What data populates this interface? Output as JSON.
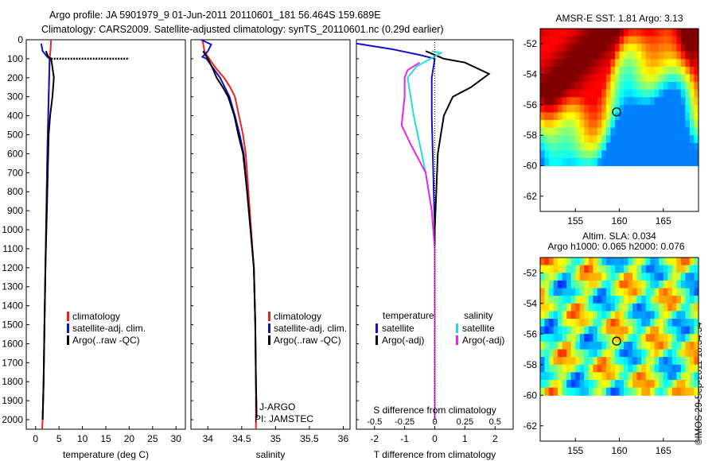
{
  "header": {
    "line1": "Argo profile: JA 5901979_9 01-Jun-2011 20110601_181 56.464S 159.689E",
    "line2": "Climatology: CARS2009. Satellite-adjusted climatology: synTS_20110601.nc (0.29d earlier)"
  },
  "stamp": "©IMOS 29-Sep-2011 18:34:34",
  "colors": {
    "climatology": "#ee2222",
    "satellite": "#1111cc",
    "argo": "#000000",
    "sat_salinity": "#22dddd",
    "argo_salinity": "#ee22ee"
  },
  "chart_data": [
    {
      "type": "line",
      "id": "temperature",
      "xlabel": "temperature (deg C)",
      "ylabel": "",
      "xlim": [
        -2,
        32
      ],
      "ylim": [
        2050,
        0
      ],
      "xticks": [
        0,
        5,
        10,
        15,
        20,
        25,
        30
      ],
      "yticks": [
        0,
        100,
        200,
        300,
        400,
        500,
        600,
        700,
        800,
        900,
        1000,
        1100,
        1200,
        1300,
        1400,
        1500,
        1600,
        1700,
        1800,
        1900,
        2000
      ],
      "legend": [
        "climatology",
        "satellite-adj. clim.",
        "Argo(..raw -QC)"
      ],
      "series": [
        {
          "name": "climatology",
          "color": "#ee2222",
          "points": [
            [
              3.3,
              0
            ],
            [
              3.2,
              50
            ],
            [
              3.0,
              100
            ],
            [
              2.9,
              200
            ],
            [
              2.7,
              400
            ],
            [
              2.5,
              600
            ],
            [
              2.3,
              900
            ],
            [
              2.1,
              1200
            ],
            [
              1.9,
              1500
            ],
            [
              1.7,
              1800
            ],
            [
              1.5,
              2000
            ],
            [
              1.4,
              2050
            ]
          ]
        },
        {
          "name": "satellite-adj. clim.",
          "color": "#1111cc",
          "points": [
            [
              1.2,
              20
            ],
            [
              1.5,
              60
            ],
            [
              2.5,
              90
            ],
            [
              3.0,
              100
            ],
            [
              2.9,
              200
            ],
            [
              2.7,
              400
            ],
            [
              2.5,
              600
            ],
            [
              2.3,
              900
            ],
            [
              2.1,
              1200
            ],
            [
              1.9,
              1500
            ],
            [
              1.7,
              1800
            ],
            [
              1.5,
              2000
            ]
          ]
        },
        {
          "name": "Argo(..raw -QC)",
          "color": "#000000",
          "points": [
            [
              2.2,
              60
            ],
            [
              2.7,
              90
            ],
            [
              3.3,
              100
            ],
            [
              3.5,
              130
            ],
            [
              3.9,
              200
            ],
            [
              3.6,
              300
            ],
            [
              3.1,
              400
            ],
            [
              2.8,
              500
            ],
            [
              2.7,
              600
            ],
            [
              2.5,
              800
            ],
            [
              2.3,
              1000
            ],
            [
              2.1,
              1200
            ],
            [
              1.9,
              1500
            ],
            [
              1.7,
              1800
            ],
            [
              1.5,
              2000
            ]
          ]
        },
        {
          "name": "Argo(..raw -QC)",
          "color": "#000000",
          "dashed": true,
          "points": [
            [
              3.3,
              100
            ],
            [
              20,
              100
            ]
          ]
        }
      ]
    },
    {
      "type": "line",
      "id": "salinity",
      "xlabel": "salinity",
      "ylabel": "",
      "xlim": [
        33.75,
        36.1
      ],
      "ylim": [
        2050,
        0
      ],
      "xticks": [
        34,
        34.5,
        35,
        35.5,
        36
      ],
      "legend": [
        "climatology",
        "satellite-adj. clim.",
        "Argo(..raw -QC)"
      ],
      "annotations": [
        "J-ARGO",
        "PI: JAMSTEC"
      ],
      "series": [
        {
          "name": "climatology",
          "color": "#ee2222",
          "points": [
            [
              33.92,
              0
            ],
            [
              33.95,
              60
            ],
            [
              34.02,
              100
            ],
            [
              34.12,
              150
            ],
            [
              34.24,
              200
            ],
            [
              34.33,
              250
            ],
            [
              34.4,
              300
            ],
            [
              34.46,
              400
            ],
            [
              34.52,
              500
            ],
            [
              34.56,
              600
            ],
            [
              34.6,
              800
            ],
            [
              34.64,
              1000
            ],
            [
              34.68,
              1200
            ],
            [
              34.7,
              1500
            ],
            [
              34.71,
              1800
            ],
            [
              34.71,
              2000
            ],
            [
              34.71,
              2050
            ]
          ]
        },
        {
          "name": "satellite-adj. clim.",
          "color": "#1111cc",
          "points": [
            [
              33.9,
              0
            ],
            [
              34.05,
              25
            ],
            [
              34.0,
              60
            ],
            [
              33.92,
              90
            ],
            [
              33.98,
              100
            ],
            [
              34.08,
              150
            ],
            [
              34.18,
              200
            ],
            [
              34.25,
              250
            ],
            [
              34.32,
              300
            ],
            [
              34.4,
              400
            ],
            [
              34.47,
              500
            ],
            [
              34.53,
              600
            ],
            [
              34.58,
              800
            ],
            [
              34.63,
              1000
            ],
            [
              34.68,
              1200
            ],
            [
              34.7,
              1500
            ],
            [
              34.71,
              1800
            ],
            [
              34.72,
              1990
            ]
          ]
        },
        {
          "name": "Argo(..raw -QC)",
          "color": "#000000",
          "points": [
            [
              33.93,
              60
            ],
            [
              34.0,
              100
            ],
            [
              34.07,
              150
            ],
            [
              34.13,
              200
            ],
            [
              34.22,
              250
            ],
            [
              34.3,
              300
            ],
            [
              34.39,
              400
            ],
            [
              34.45,
              500
            ],
            [
              34.52,
              600
            ],
            [
              34.58,
              800
            ],
            [
              34.63,
              1000
            ],
            [
              34.68,
              1200
            ],
            [
              34.7,
              1500
            ],
            [
              34.71,
              1800
            ],
            [
              34.72,
              1990
            ]
          ]
        }
      ]
    },
    {
      "type": "line",
      "id": "difference",
      "xlabel": "T difference from climatology",
      "xlabel_top": "S difference from climatology",
      "xlim": [
        -2.6,
        2.6
      ],
      "ylim": [
        2050,
        0
      ],
      "xticks": [
        -2,
        -1,
        0,
        1,
        2
      ],
      "xticks_s": [
        "-0.5",
        "-0.25",
        "0",
        "0.25",
        "0.5"
      ],
      "legend": {
        "temperature_title": "temperature",
        "salinity_title": "salinity",
        "temperature": [
          "satellite",
          "Argo(-adj)"
        ],
        "salinity": [
          "satellite",
          "Argo(-adj)"
        ]
      },
      "series": [
        {
          "name": "temperature satellite",
          "color": "#1111cc",
          "points": [
            [
              -2.6,
              20
            ],
            [
              -1.4,
              50
            ],
            [
              -0.5,
              80
            ],
            [
              0,
              100
            ],
            [
              -0.1,
              200
            ],
            [
              -0.1,
              400
            ],
            [
              -0.05,
              700
            ],
            [
              0,
              1000
            ],
            [
              0,
              2000
            ]
          ]
        },
        {
          "name": "temperature Argo(-adj)",
          "color": "#000000",
          "points": [
            [
              -0.3,
              60
            ],
            [
              0.3,
              100
            ],
            [
              1.0,
              120
            ],
            [
              1.8,
              180
            ],
            [
              1.2,
              250
            ],
            [
              0.6,
              300
            ],
            [
              0.3,
              400
            ],
            [
              0.2,
              500
            ],
            [
              0.1,
              600
            ],
            [
              0.05,
              800
            ],
            [
              0,
              1000
            ],
            [
              0,
              2000
            ]
          ]
        },
        {
          "name": "salinity satellite",
          "color": "#22dddd",
          "points": [
            [
              -0.1,
              60
            ],
            [
              0.2,
              70
            ],
            [
              -0.6,
              140
            ],
            [
              -0.9,
              200
            ],
            [
              -0.8,
              300
            ],
            [
              -0.7,
              400
            ],
            [
              -0.5,
              550
            ],
            [
              -0.3,
              700
            ],
            [
              -0.1,
              900
            ],
            [
              0,
              1100
            ],
            [
              0,
              2000
            ]
          ]
        },
        {
          "name": "salinity Argo(-adj)",
          "color": "#ee22ee",
          "points": [
            [
              -0.5,
              120
            ],
            [
              -0.9,
              160
            ],
            [
              -1.0,
              200
            ],
            [
              -1.0,
              300
            ],
            [
              -1.1,
              450
            ],
            [
              -0.8,
              550
            ],
            [
              -0.3,
              700
            ],
            [
              -0.1,
              900
            ],
            [
              0,
              1100
            ],
            [
              0,
              2000
            ]
          ]
        }
      ]
    },
    {
      "type": "heatmap",
      "id": "sst-map",
      "title": "AMSR-E SST: 1.81 Argo: 3.13",
      "xlim": [
        151,
        169
      ],
      "ylim": [
        -63,
        -51
      ],
      "xticks": [
        155,
        160,
        165
      ],
      "yticks": [
        -52,
        -54,
        -56,
        -58,
        -60,
        -62
      ],
      "marker": {
        "lon": 159.689,
        "lat": -56.464
      }
    },
    {
      "type": "heatmap",
      "id": "sla-map",
      "title": "Altim. SLA: 0.034",
      "subtitle": "Argo h1000: 0.065 h2000: 0.076",
      "xlim": [
        151,
        169
      ],
      "ylim": [
        -63,
        -51
      ],
      "xticks": [
        155,
        160,
        165
      ],
      "yticks": [
        -52,
        -54,
        -56,
        -58,
        -60,
        -62
      ],
      "marker": {
        "lon": 159.689,
        "lat": -56.464
      }
    }
  ]
}
